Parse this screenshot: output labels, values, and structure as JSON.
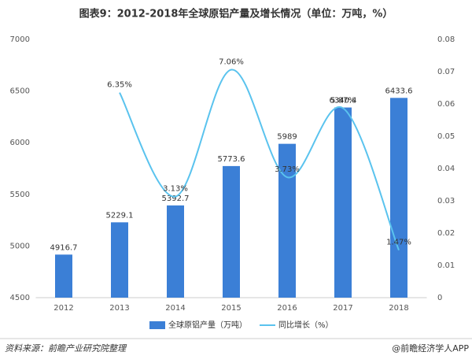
{
  "chart_data": {
    "type": "bar-line",
    "title": "图表9：2012-2018年全球原铝产量及增长情况（单位：万吨，%）",
    "categories": [
      "2012",
      "2013",
      "2014",
      "2015",
      "2016",
      "2017",
      "2018"
    ],
    "series": [
      {
        "name": "全球原铝产量（万吨）",
        "type": "bar",
        "color": "#3b7fd6",
        "values": [
          4916.7,
          5229.1,
          5392.7,
          5773.6,
          5989,
          6340.4,
          6433.6
        ]
      },
      {
        "name": "同比增长（%）",
        "type": "line",
        "axis": "y2",
        "color": "#5ac3ee",
        "values": [
          null,
          0.0635,
          0.0313,
          0.0706,
          0.0373,
          0.0587,
          0.0147
        ],
        "value_labels": [
          null,
          "6.35%",
          "3.13%",
          "7.06%",
          "3.73%",
          "5.87%",
          "1.47%"
        ]
      }
    ],
    "ylim": [
      4500,
      7000
    ],
    "yticks": [
      4500,
      5000,
      5500,
      6000,
      6500,
      7000
    ],
    "y2lim": [
      0,
      0.08
    ],
    "y2ticks": [
      0,
      0.01,
      0.02,
      0.03,
      0.04,
      0.05,
      0.06,
      0.07,
      0.08
    ],
    "grid": false,
    "legend": "bottom",
    "source": "资料来源：前瞻产业研究院整理",
    "credit": "@前瞻经济学人APP"
  }
}
